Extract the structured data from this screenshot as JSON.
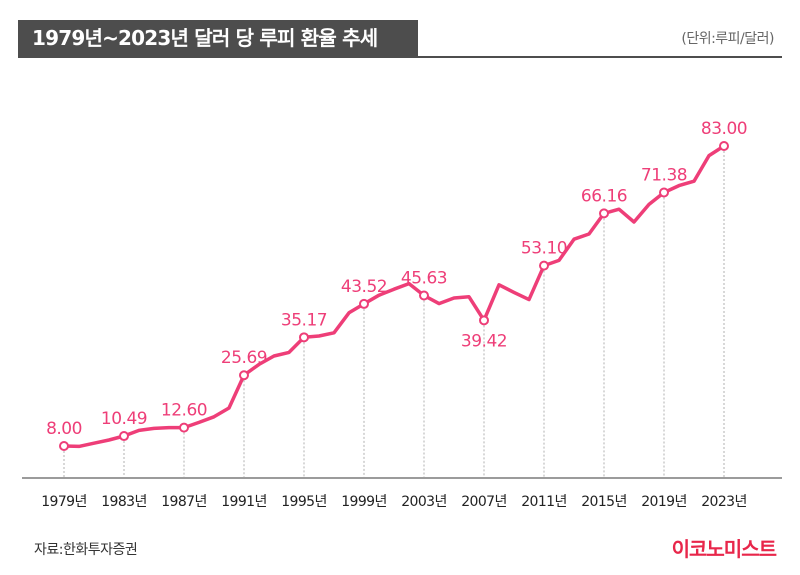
{
  "header": {
    "title": "1979년~2023년 달러 당 루피 환율 추세",
    "unit_note": "(단위:루피/달러)"
  },
  "footer": {
    "source": "자료:한화투자증권",
    "brand": "이코노미스트"
  },
  "colors": {
    "line": "#ee3e78",
    "label": "#ee3e78",
    "title_bar": "#4d4d4d",
    "brand": "#e8264a"
  },
  "chart_data": {
    "type": "line",
    "title": "1979년~2023년 달러 당 루피 환율 추세",
    "unit": "루피/달러",
    "x_tick_labels": [
      "1979년",
      "1983년",
      "1987년",
      "1991년",
      "1995년",
      "1999년",
      "2003년",
      "2007년",
      "2011년",
      "2015년",
      "2019년",
      "2023년"
    ],
    "grid": false,
    "legend": "none",
    "series": [
      {
        "x": [
          1979,
          1980,
          1981,
          1982,
          1983,
          1984,
          1985,
          1986,
          1987,
          1988,
          1989,
          1990,
          1991,
          1992,
          1993,
          1994,
          1995,
          1996,
          1997,
          1998,
          1999,
          2000,
          2001,
          2002,
          2003,
          2004,
          2005,
          2006,
          2007,
          2008,
          2009,
          2010,
          2011,
          2012,
          2013,
          2014,
          2015,
          2016,
          2017,
          2018,
          2019,
          2020,
          2021,
          2022,
          2023
        ],
        "values": [
          8.0,
          7.9,
          8.7,
          9.5,
          10.49,
          11.9,
          12.4,
          12.6,
          12.6,
          13.9,
          15.3,
          17.5,
          25.69,
          28.4,
          30.5,
          31.4,
          35.17,
          35.5,
          36.3,
          41.3,
          43.52,
          45.7,
          47.2,
          48.6,
          45.63,
          43.6,
          45.0,
          45.3,
          39.42,
          48.3,
          46.4,
          44.6,
          53.1,
          54.4,
          59.7,
          61.0,
          66.16,
          67.2,
          64.0,
          68.4,
          71.38,
          73.1,
          74.2,
          80.6,
          83.0
        ]
      }
    ],
    "point_labels": [
      {
        "x": 1979,
        "text": "8.00"
      },
      {
        "x": 1983,
        "text": "10.49"
      },
      {
        "x": 1987,
        "text": "12.60"
      },
      {
        "x": 1991,
        "text": "25.69"
      },
      {
        "x": 1995,
        "text": "35.17"
      },
      {
        "x": 1999,
        "text": "43.52"
      },
      {
        "x": 2003,
        "text": "45.63"
      },
      {
        "x": 2007,
        "text": "39.42"
      },
      {
        "x": 2011,
        "text": "53.10"
      },
      {
        "x": 2015,
        "text": "66.16"
      },
      {
        "x": 2019,
        "text": "71.38"
      },
      {
        "x": 2023,
        "text": "83.00"
      }
    ]
  }
}
